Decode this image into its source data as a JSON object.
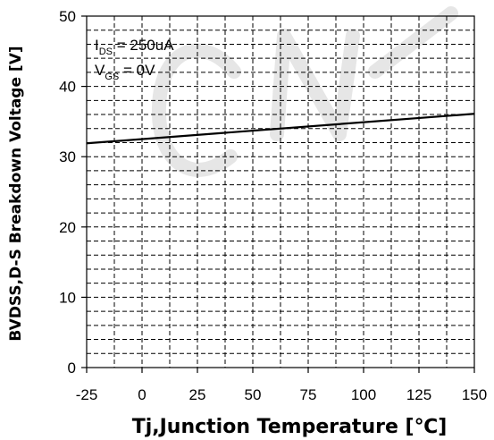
{
  "chart_data": {
    "type": "line",
    "xlabel": "Tj,Junction Temperature [℃]",
    "ylabel": "BVDSS,D-S Breakdown Voltage  [V]",
    "xlim": [
      -25,
      150
    ],
    "ylim": [
      0,
      50
    ],
    "x_ticks": [
      -25,
      0,
      25,
      50,
      75,
      100,
      125,
      150
    ],
    "y_ticks": [
      0,
      10,
      20,
      30,
      40,
      50
    ],
    "x_tick_labels": [
      "-25",
      "0",
      "25",
      "50",
      "75",
      "100",
      "125",
      "150"
    ],
    "y_tick_labels": [
      "0",
      "10",
      "20",
      "30",
      "40",
      "50"
    ],
    "x_minor_step": 12.5,
    "y_minor_step": 2,
    "grid": true,
    "grid_style": "dashed",
    "series": [
      {
        "x": [
          -25,
          150
        ],
        "y": [
          31.9,
          36.1
        ],
        "color": "#000000"
      }
    ],
    "annotations": [
      {
        "main": "I",
        "sub": "DS",
        "rest": " = 250uA"
      },
      {
        "main": "V",
        "sub": "GS",
        "rest": " = 0V"
      }
    ]
  }
}
